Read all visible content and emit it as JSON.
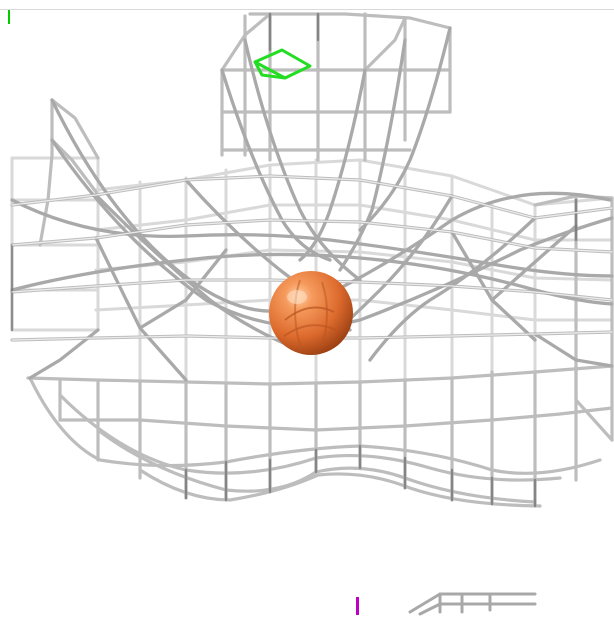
{
  "view": {
    "background": "#ffffff",
    "accent_ball": "#e06a28",
    "accent_green": "#22dd22",
    "accent_magenta": "#c000c0",
    "mesh_color": "#bcbcbc",
    "mesh_shadow": "#666666"
  }
}
